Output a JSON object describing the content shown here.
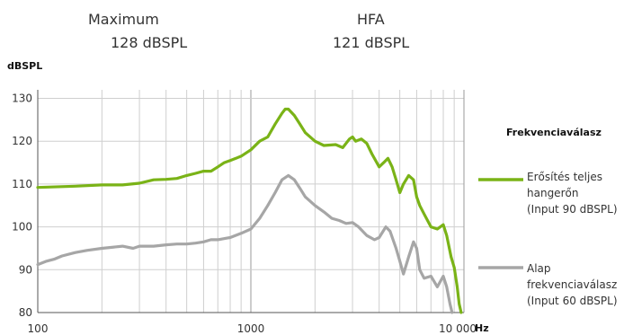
{
  "header": {
    "max_label": "Maximum",
    "max_value": "128 dBSPL",
    "hfa_label": "HFA",
    "hfa_value": "121 dBSPL"
  },
  "legend": {
    "title": "Frekvenciaválasz",
    "items": [
      {
        "line1": "Erősítés teljes",
        "line2": "hangerőn",
        "line3": "(Input 90 dBSPL)",
        "color": "#7ab317"
      },
      {
        "line1": "Alap",
        "line2": "frekvenciaválasz",
        "line3": "(Input 60 dBSPL)",
        "color": "#a6a6a6"
      }
    ]
  },
  "chart_data": {
    "type": "line",
    "title": "",
    "xlabel": "Hz",
    "ylabel": "dBSPL",
    "x_scale": "log",
    "xlim": [
      100,
      10000
    ],
    "ylim": [
      80,
      132
    ],
    "x_ticks": [
      100,
      1000,
      10000
    ],
    "x_tick_labels": [
      "100",
      "1000",
      "10 000"
    ],
    "y_ticks": [
      80,
      90,
      100,
      110,
      120,
      130
    ],
    "y_tick_labels": [
      "80",
      "90",
      "100",
      "110",
      "120",
      "130"
    ],
    "grid": true,
    "legend_position": "right",
    "series": [
      {
        "name": "Erősítés teljes hangerőn (Input 90 dBSPL)",
        "color": "#7ab317",
        "points": [
          [
            100,
            109.2
          ],
          [
            150,
            109.5
          ],
          [
            200,
            109.8
          ],
          [
            250,
            109.8
          ],
          [
            300,
            110.2
          ],
          [
            350,
            111
          ],
          [
            400,
            111.1
          ],
          [
            450,
            111.3
          ],
          [
            500,
            112
          ],
          [
            550,
            112.5
          ],
          [
            600,
            113
          ],
          [
            650,
            113
          ],
          [
            700,
            114
          ],
          [
            750,
            115
          ],
          [
            800,
            115.5
          ],
          [
            850,
            116
          ],
          [
            900,
            116.5
          ],
          [
            1000,
            118
          ],
          [
            1100,
            120
          ],
          [
            1200,
            121
          ],
          [
            1300,
            124
          ],
          [
            1400,
            126.5
          ],
          [
            1450,
            127.5
          ],
          [
            1500,
            127.5
          ],
          [
            1600,
            126
          ],
          [
            1700,
            124
          ],
          [
            1800,
            122
          ],
          [
            2000,
            120
          ],
          [
            2200,
            119
          ],
          [
            2500,
            119.2
          ],
          [
            2700,
            118.5
          ],
          [
            2900,
            120.5
          ],
          [
            3000,
            121
          ],
          [
            3100,
            120
          ],
          [
            3300,
            120.5
          ],
          [
            3500,
            119.5
          ],
          [
            3700,
            117
          ],
          [
            4000,
            114
          ],
          [
            4200,
            115
          ],
          [
            4400,
            116
          ],
          [
            4600,
            114
          ],
          [
            4800,
            111
          ],
          [
            5000,
            108
          ],
          [
            5200,
            110
          ],
          [
            5500,
            112
          ],
          [
            5800,
            111
          ],
          [
            6000,
            107
          ],
          [
            6200,
            105
          ],
          [
            6500,
            103
          ],
          [
            7000,
            100
          ],
          [
            7500,
            99.5
          ],
          [
            8000,
            100.5
          ],
          [
            8300,
            98
          ],
          [
            8700,
            93
          ],
          [
            9000,
            90.5
          ],
          [
            9300,
            86
          ],
          [
            9500,
            82
          ],
          [
            9700,
            80
          ]
        ]
      },
      {
        "name": "Alap frekvenciaválasz (Input 60 dBSPL)",
        "color": "#a6a6a6",
        "points": [
          [
            100,
            91.2
          ],
          [
            110,
            92
          ],
          [
            120,
            92.5
          ],
          [
            130,
            93.2
          ],
          [
            150,
            94
          ],
          [
            170,
            94.5
          ],
          [
            200,
            95
          ],
          [
            250,
            95.5
          ],
          [
            280,
            95
          ],
          [
            300,
            95.5
          ],
          [
            350,
            95.5
          ],
          [
            400,
            95.8
          ],
          [
            450,
            96
          ],
          [
            500,
            96
          ],
          [
            550,
            96.2
          ],
          [
            600,
            96.5
          ],
          [
            650,
            97
          ],
          [
            700,
            97
          ],
          [
            800,
            97.5
          ],
          [
            900,
            98.5
          ],
          [
            1000,
            99.5
          ],
          [
            1100,
            102
          ],
          [
            1200,
            105
          ],
          [
            1300,
            108
          ],
          [
            1400,
            111
          ],
          [
            1500,
            112
          ],
          [
            1600,
            111
          ],
          [
            1700,
            109
          ],
          [
            1800,
            107
          ],
          [
            2000,
            105
          ],
          [
            2200,
            103.5
          ],
          [
            2400,
            102
          ],
          [
            2600,
            101.5
          ],
          [
            2800,
            100.8
          ],
          [
            3000,
            101
          ],
          [
            3200,
            100
          ],
          [
            3500,
            98
          ],
          [
            3800,
            97
          ],
          [
            4000,
            97.5
          ],
          [
            4300,
            100
          ],
          [
            4500,
            99
          ],
          [
            4800,
            95
          ],
          [
            5000,
            92
          ],
          [
            5200,
            89
          ],
          [
            5500,
            93
          ],
          [
            5800,
            96.5
          ],
          [
            6000,
            95
          ],
          [
            6200,
            90
          ],
          [
            6500,
            88
          ],
          [
            7000,
            88.5
          ],
          [
            7500,
            86
          ],
          [
            8000,
            88.5
          ],
          [
            8300,
            86
          ],
          [
            8600,
            82
          ],
          [
            8800,
            80
          ]
        ]
      }
    ]
  }
}
